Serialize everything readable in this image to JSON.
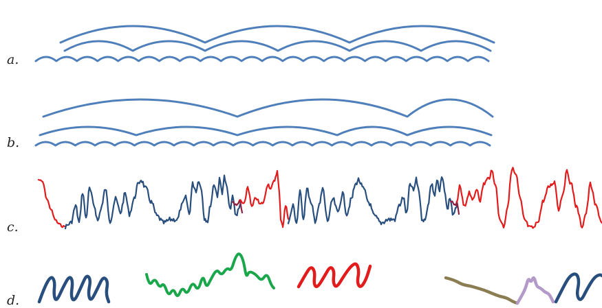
{
  "rows": [
    {
      "label": "a."
    },
    {
      "label": "b."
    },
    {
      "label": "c."
    },
    {
      "label": "d."
    }
  ],
  "colors": {
    "arc_blue": "#4f7fba",
    "navy": "#284e7e",
    "red": "#e21c1c",
    "maroon": "#8e2040",
    "green": "#1aa64a",
    "olive": "#8a7d52",
    "lilac": "#b49ac9"
  }
}
